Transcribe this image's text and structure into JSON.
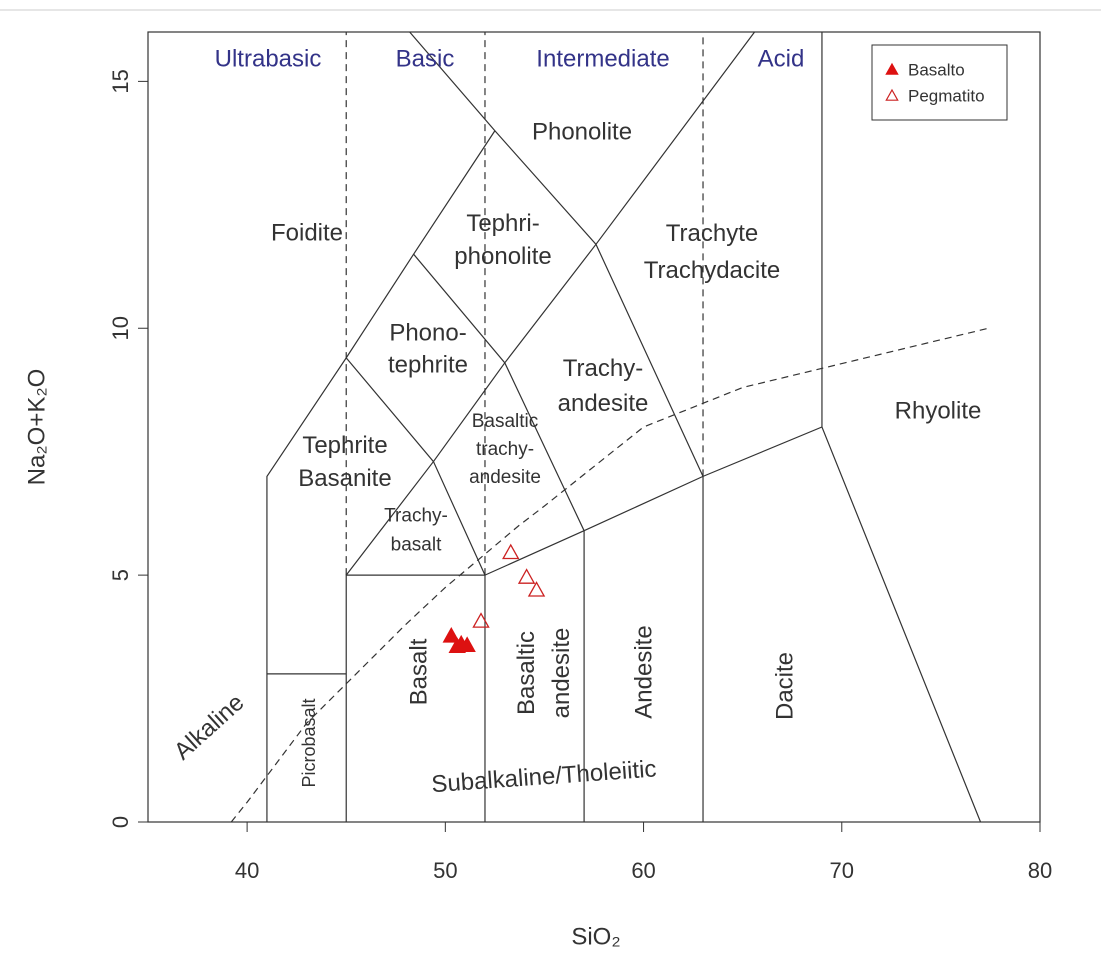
{
  "chart_data": {
    "type": "scatter",
    "xlabel": "SiO₂",
    "ylabel": "Na₂O+K₂O",
    "xlim": [
      35,
      80
    ],
    "ylim": [
      0,
      16
    ],
    "xticks": [
      40,
      50,
      60,
      70,
      80
    ],
    "yticks": [
      0,
      5,
      10,
      15
    ],
    "legend": "top-right",
    "classes": [
      "Ultrabasic",
      "Basic",
      "Intermediate",
      "Acid"
    ],
    "class_color": "#333388",
    "regions": [
      [
        "Foidite"
      ],
      [
        "Tephri-",
        "phonolite"
      ],
      [
        "Trachyte",
        "Trachydacite"
      ],
      [
        "Phonolite"
      ],
      [
        "Phono-",
        "tephrite"
      ],
      [
        "Trachy-",
        "andesite"
      ],
      [
        "Rhyolite"
      ],
      [
        "Tephrite",
        "Basanite"
      ],
      [
        "Basaltic",
        "trachy-",
        "andesite"
      ],
      [
        "Trachy-",
        "basalt"
      ],
      [
        "Basalt"
      ],
      [
        "Basaltic",
        "andesite"
      ],
      [
        "Andesite"
      ],
      [
        "Dacite"
      ],
      [
        "Picrobasalt"
      ],
      [
        "Alkaline"
      ],
      [
        "Subalkaline/Tholeiitic"
      ]
    ],
    "lines": [
      {
        "x": [
          41,
          41,
          45,
          48.4,
          52.5,
          48.2
        ],
        "y": [
          0,
          7,
          9.4,
          11.5,
          14,
          16
        ],
        "dashed": false
      },
      {
        "x": [
          41,
          45
        ],
        "y": [
          3,
          3
        ],
        "dashed": false
      },
      {
        "x": [
          45,
          45,
          52,
          52
        ],
        "y": [
          0,
          5,
          5,
          0
        ],
        "dashed": false
      },
      {
        "x": [
          45,
          49.4,
          53,
          57.6,
          65.6
        ],
        "y": [
          5,
          7.3,
          9.3,
          11.7,
          16
        ],
        "dashed": false
      },
      {
        "x": [
          45,
          49.4,
          52
        ],
        "y": [
          9.4,
          7.3,
          5
        ],
        "dashed": false
      },
      {
        "x": [
          48.4,
          53,
          57
        ],
        "y": [
          11.5,
          9.3,
          5.9
        ],
        "dashed": false
      },
      {
        "x": [
          52.5,
          57.6,
          63
        ],
        "y": [
          14,
          11.7,
          7
        ],
        "dashed": false
      },
      {
        "x": [
          52,
          57,
          63,
          69,
          77
        ],
        "y": [
          5,
          5.9,
          7,
          8,
          0
        ],
        "dashed": false
      },
      {
        "x": [
          57,
          57
        ],
        "y": [
          0,
          5.9
        ],
        "dashed": false
      },
      {
        "x": [
          63,
          63
        ],
        "y": [
          0,
          7
        ],
        "dashed": false
      },
      {
        "x": [
          69,
          69
        ],
        "y": [
          8,
          16
        ],
        "dashed": false
      },
      {
        "x": [
          45,
          45
        ],
        "y": [
          5,
          16
        ],
        "dashed": true
      },
      {
        "x": [
          52,
          52
        ],
        "y": [
          5,
          16
        ],
        "dashed": true
      },
      {
        "x": [
          63,
          63
        ],
        "y": [
          7,
          16
        ],
        "dashed": true
      },
      {
        "x": [
          39.2,
          40,
          43,
          45,
          48,
          50,
          53.7,
          55,
          60,
          65,
          77.4
        ],
        "y": [
          0,
          0.4,
          2,
          2.8,
          4,
          4.75,
          6,
          6.4,
          8,
          8.8,
          10
        ],
        "dashed": true
      }
    ],
    "series": [
      {
        "name": "Basalto",
        "color": "#dd1111",
        "filled": true,
        "x": [
          50.3,
          50.8,
          51.1,
          50.6
        ],
        "y": [
          3.76,
          3.6,
          3.57,
          3.55
        ]
      },
      {
        "name": "Pegmatito",
        "color": "#cc2222",
        "filled": false,
        "x": [
          51.8,
          53.3,
          54.1,
          54.6
        ],
        "y": [
          4.06,
          5.45,
          4.95,
          4.69
        ]
      }
    ]
  }
}
